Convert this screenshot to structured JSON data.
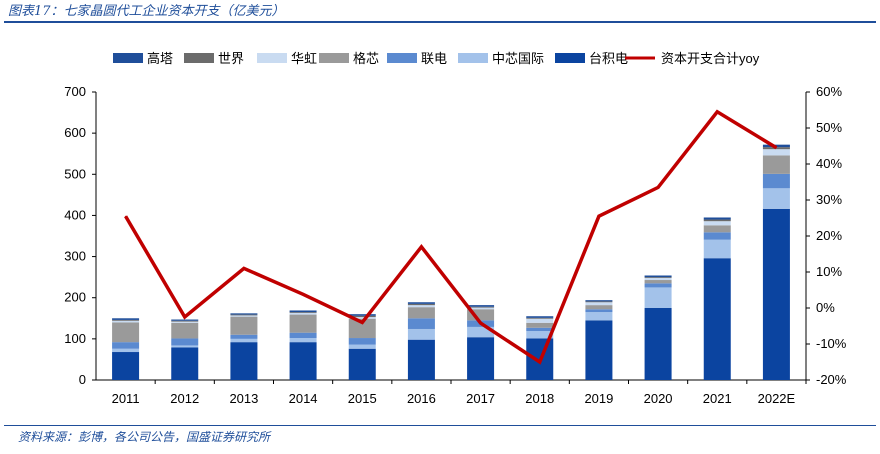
{
  "figure_title": "图表17：七家晶圆代工企业资本开支（亿美元）",
  "source": "资料来源：彭博，各公司公告，国盛证券研究所",
  "colors": {
    "高塔": "#1f4e9a",
    "世界": "#6b6b6b",
    "华虹": "#c9dbf1",
    "格芯": "#9a9a9a",
    "联电": "#5b8ad0",
    "中芯国际": "#a3c2ea",
    "台积电": "#0b44a0",
    "yoy": "#c00000"
  },
  "chart_data": {
    "type": "bar",
    "stacked": true,
    "categories": [
      "2011",
      "2012",
      "2013",
      "2014",
      "2015",
      "2016",
      "2017",
      "2018",
      "2019",
      "2020",
      "2021",
      "2022E"
    ],
    "series": [
      {
        "name": "台积电",
        "values": [
          68,
          79,
          92,
          92,
          76,
          98,
          104,
          101,
          145,
          175,
          296,
          416
        ]
      },
      {
        "name": "中芯国际",
        "values": [
          8,
          5,
          8,
          10,
          10,
          26,
          25,
          18,
          20,
          50,
          45,
          50
        ]
      },
      {
        "name": "联电",
        "values": [
          16,
          17,
          10,
          13,
          16,
          26,
          16,
          8,
          7,
          10,
          18,
          35
        ]
      },
      {
        "name": "格芯",
        "values": [
          48,
          38,
          44,
          44,
          47,
          27,
          27,
          12,
          10,
          8,
          17,
          45
        ]
      },
      {
        "name": "华虹",
        "values": [
          4,
          3,
          3,
          4,
          4,
          5,
          4,
          10,
          7,
          5,
          10,
          15
        ]
      },
      {
        "name": "世界",
        "values": [
          2,
          2,
          2,
          2,
          3,
          3,
          2,
          2,
          2,
          2,
          4,
          5
        ]
      },
      {
        "name": "高塔",
        "values": [
          4,
          3,
          3,
          4,
          4,
          4,
          4,
          4,
          3,
          4,
          5,
          6
        ]
      }
    ],
    "line": {
      "name": "资本开支合计yoy",
      "values": [
        25.5,
        -2.5,
        11,
        3.8,
        -4,
        17,
        -4.2,
        -15,
        25.5,
        33.5,
        54.5,
        44.5
      ]
    },
    "ylim": [
      0,
      700
    ],
    "yticks": [
      0,
      100,
      200,
      300,
      400,
      500,
      600,
      700
    ],
    "y2lim": [
      -20,
      60
    ],
    "y2ticks": [
      "-20%",
      "-10%",
      "0%",
      "10%",
      "20%",
      "30%",
      "40%",
      "50%",
      "60%"
    ],
    "legend": [
      "高塔",
      "世界",
      "华虹",
      "格芯",
      "联电",
      "中芯国际",
      "台积电",
      "资本开支合计yoy"
    ],
    "legend_position": "top",
    "grid": false
  }
}
